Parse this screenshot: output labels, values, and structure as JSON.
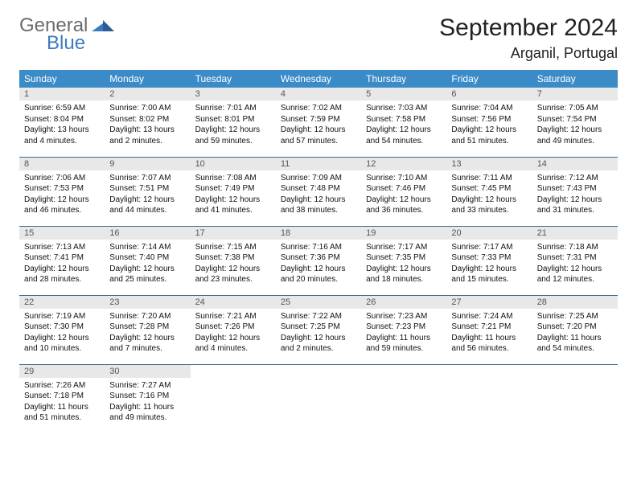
{
  "logo": {
    "general": "General",
    "blue": "Blue"
  },
  "title": "September 2024",
  "location": "Arganil, Portugal",
  "colors": {
    "header_bg": "#3b8bc8",
    "header_text": "#ffffff",
    "day_num_bg": "#e8e8e8",
    "cell_border": "#3b6b8b",
    "logo_gray": "#6b6b6b",
    "logo_blue": "#3b7bbf"
  },
  "weekdays": [
    "Sunday",
    "Monday",
    "Tuesday",
    "Wednesday",
    "Thursday",
    "Friday",
    "Saturday"
  ],
  "weeks": [
    [
      {
        "n": "1",
        "sr": "Sunrise: 6:59 AM",
        "ss": "Sunset: 8:04 PM",
        "dl": "Daylight: 13 hours and 4 minutes."
      },
      {
        "n": "2",
        "sr": "Sunrise: 7:00 AM",
        "ss": "Sunset: 8:02 PM",
        "dl": "Daylight: 13 hours and 2 minutes."
      },
      {
        "n": "3",
        "sr": "Sunrise: 7:01 AM",
        "ss": "Sunset: 8:01 PM",
        "dl": "Daylight: 12 hours and 59 minutes."
      },
      {
        "n": "4",
        "sr": "Sunrise: 7:02 AM",
        "ss": "Sunset: 7:59 PM",
        "dl": "Daylight: 12 hours and 57 minutes."
      },
      {
        "n": "5",
        "sr": "Sunrise: 7:03 AM",
        "ss": "Sunset: 7:58 PM",
        "dl": "Daylight: 12 hours and 54 minutes."
      },
      {
        "n": "6",
        "sr": "Sunrise: 7:04 AM",
        "ss": "Sunset: 7:56 PM",
        "dl": "Daylight: 12 hours and 51 minutes."
      },
      {
        "n": "7",
        "sr": "Sunrise: 7:05 AM",
        "ss": "Sunset: 7:54 PM",
        "dl": "Daylight: 12 hours and 49 minutes."
      }
    ],
    [
      {
        "n": "8",
        "sr": "Sunrise: 7:06 AM",
        "ss": "Sunset: 7:53 PM",
        "dl": "Daylight: 12 hours and 46 minutes."
      },
      {
        "n": "9",
        "sr": "Sunrise: 7:07 AM",
        "ss": "Sunset: 7:51 PM",
        "dl": "Daylight: 12 hours and 44 minutes."
      },
      {
        "n": "10",
        "sr": "Sunrise: 7:08 AM",
        "ss": "Sunset: 7:49 PM",
        "dl": "Daylight: 12 hours and 41 minutes."
      },
      {
        "n": "11",
        "sr": "Sunrise: 7:09 AM",
        "ss": "Sunset: 7:48 PM",
        "dl": "Daylight: 12 hours and 38 minutes."
      },
      {
        "n": "12",
        "sr": "Sunrise: 7:10 AM",
        "ss": "Sunset: 7:46 PM",
        "dl": "Daylight: 12 hours and 36 minutes."
      },
      {
        "n": "13",
        "sr": "Sunrise: 7:11 AM",
        "ss": "Sunset: 7:45 PM",
        "dl": "Daylight: 12 hours and 33 minutes."
      },
      {
        "n": "14",
        "sr": "Sunrise: 7:12 AM",
        "ss": "Sunset: 7:43 PM",
        "dl": "Daylight: 12 hours and 31 minutes."
      }
    ],
    [
      {
        "n": "15",
        "sr": "Sunrise: 7:13 AM",
        "ss": "Sunset: 7:41 PM",
        "dl": "Daylight: 12 hours and 28 minutes."
      },
      {
        "n": "16",
        "sr": "Sunrise: 7:14 AM",
        "ss": "Sunset: 7:40 PM",
        "dl": "Daylight: 12 hours and 25 minutes."
      },
      {
        "n": "17",
        "sr": "Sunrise: 7:15 AM",
        "ss": "Sunset: 7:38 PM",
        "dl": "Daylight: 12 hours and 23 minutes."
      },
      {
        "n": "18",
        "sr": "Sunrise: 7:16 AM",
        "ss": "Sunset: 7:36 PM",
        "dl": "Daylight: 12 hours and 20 minutes."
      },
      {
        "n": "19",
        "sr": "Sunrise: 7:17 AM",
        "ss": "Sunset: 7:35 PM",
        "dl": "Daylight: 12 hours and 18 minutes."
      },
      {
        "n": "20",
        "sr": "Sunrise: 7:17 AM",
        "ss": "Sunset: 7:33 PM",
        "dl": "Daylight: 12 hours and 15 minutes."
      },
      {
        "n": "21",
        "sr": "Sunrise: 7:18 AM",
        "ss": "Sunset: 7:31 PM",
        "dl": "Daylight: 12 hours and 12 minutes."
      }
    ],
    [
      {
        "n": "22",
        "sr": "Sunrise: 7:19 AM",
        "ss": "Sunset: 7:30 PM",
        "dl": "Daylight: 12 hours and 10 minutes."
      },
      {
        "n": "23",
        "sr": "Sunrise: 7:20 AM",
        "ss": "Sunset: 7:28 PM",
        "dl": "Daylight: 12 hours and 7 minutes."
      },
      {
        "n": "24",
        "sr": "Sunrise: 7:21 AM",
        "ss": "Sunset: 7:26 PM",
        "dl": "Daylight: 12 hours and 4 minutes."
      },
      {
        "n": "25",
        "sr": "Sunrise: 7:22 AM",
        "ss": "Sunset: 7:25 PM",
        "dl": "Daylight: 12 hours and 2 minutes."
      },
      {
        "n": "26",
        "sr": "Sunrise: 7:23 AM",
        "ss": "Sunset: 7:23 PM",
        "dl": "Daylight: 11 hours and 59 minutes."
      },
      {
        "n": "27",
        "sr": "Sunrise: 7:24 AM",
        "ss": "Sunset: 7:21 PM",
        "dl": "Daylight: 11 hours and 56 minutes."
      },
      {
        "n": "28",
        "sr": "Sunrise: 7:25 AM",
        "ss": "Sunset: 7:20 PM",
        "dl": "Daylight: 11 hours and 54 minutes."
      }
    ],
    [
      {
        "n": "29",
        "sr": "Sunrise: 7:26 AM",
        "ss": "Sunset: 7:18 PM",
        "dl": "Daylight: 11 hours and 51 minutes."
      },
      {
        "n": "30",
        "sr": "Sunrise: 7:27 AM",
        "ss": "Sunset: 7:16 PM",
        "dl": "Daylight: 11 hours and 49 minutes."
      },
      null,
      null,
      null,
      null,
      null
    ]
  ]
}
